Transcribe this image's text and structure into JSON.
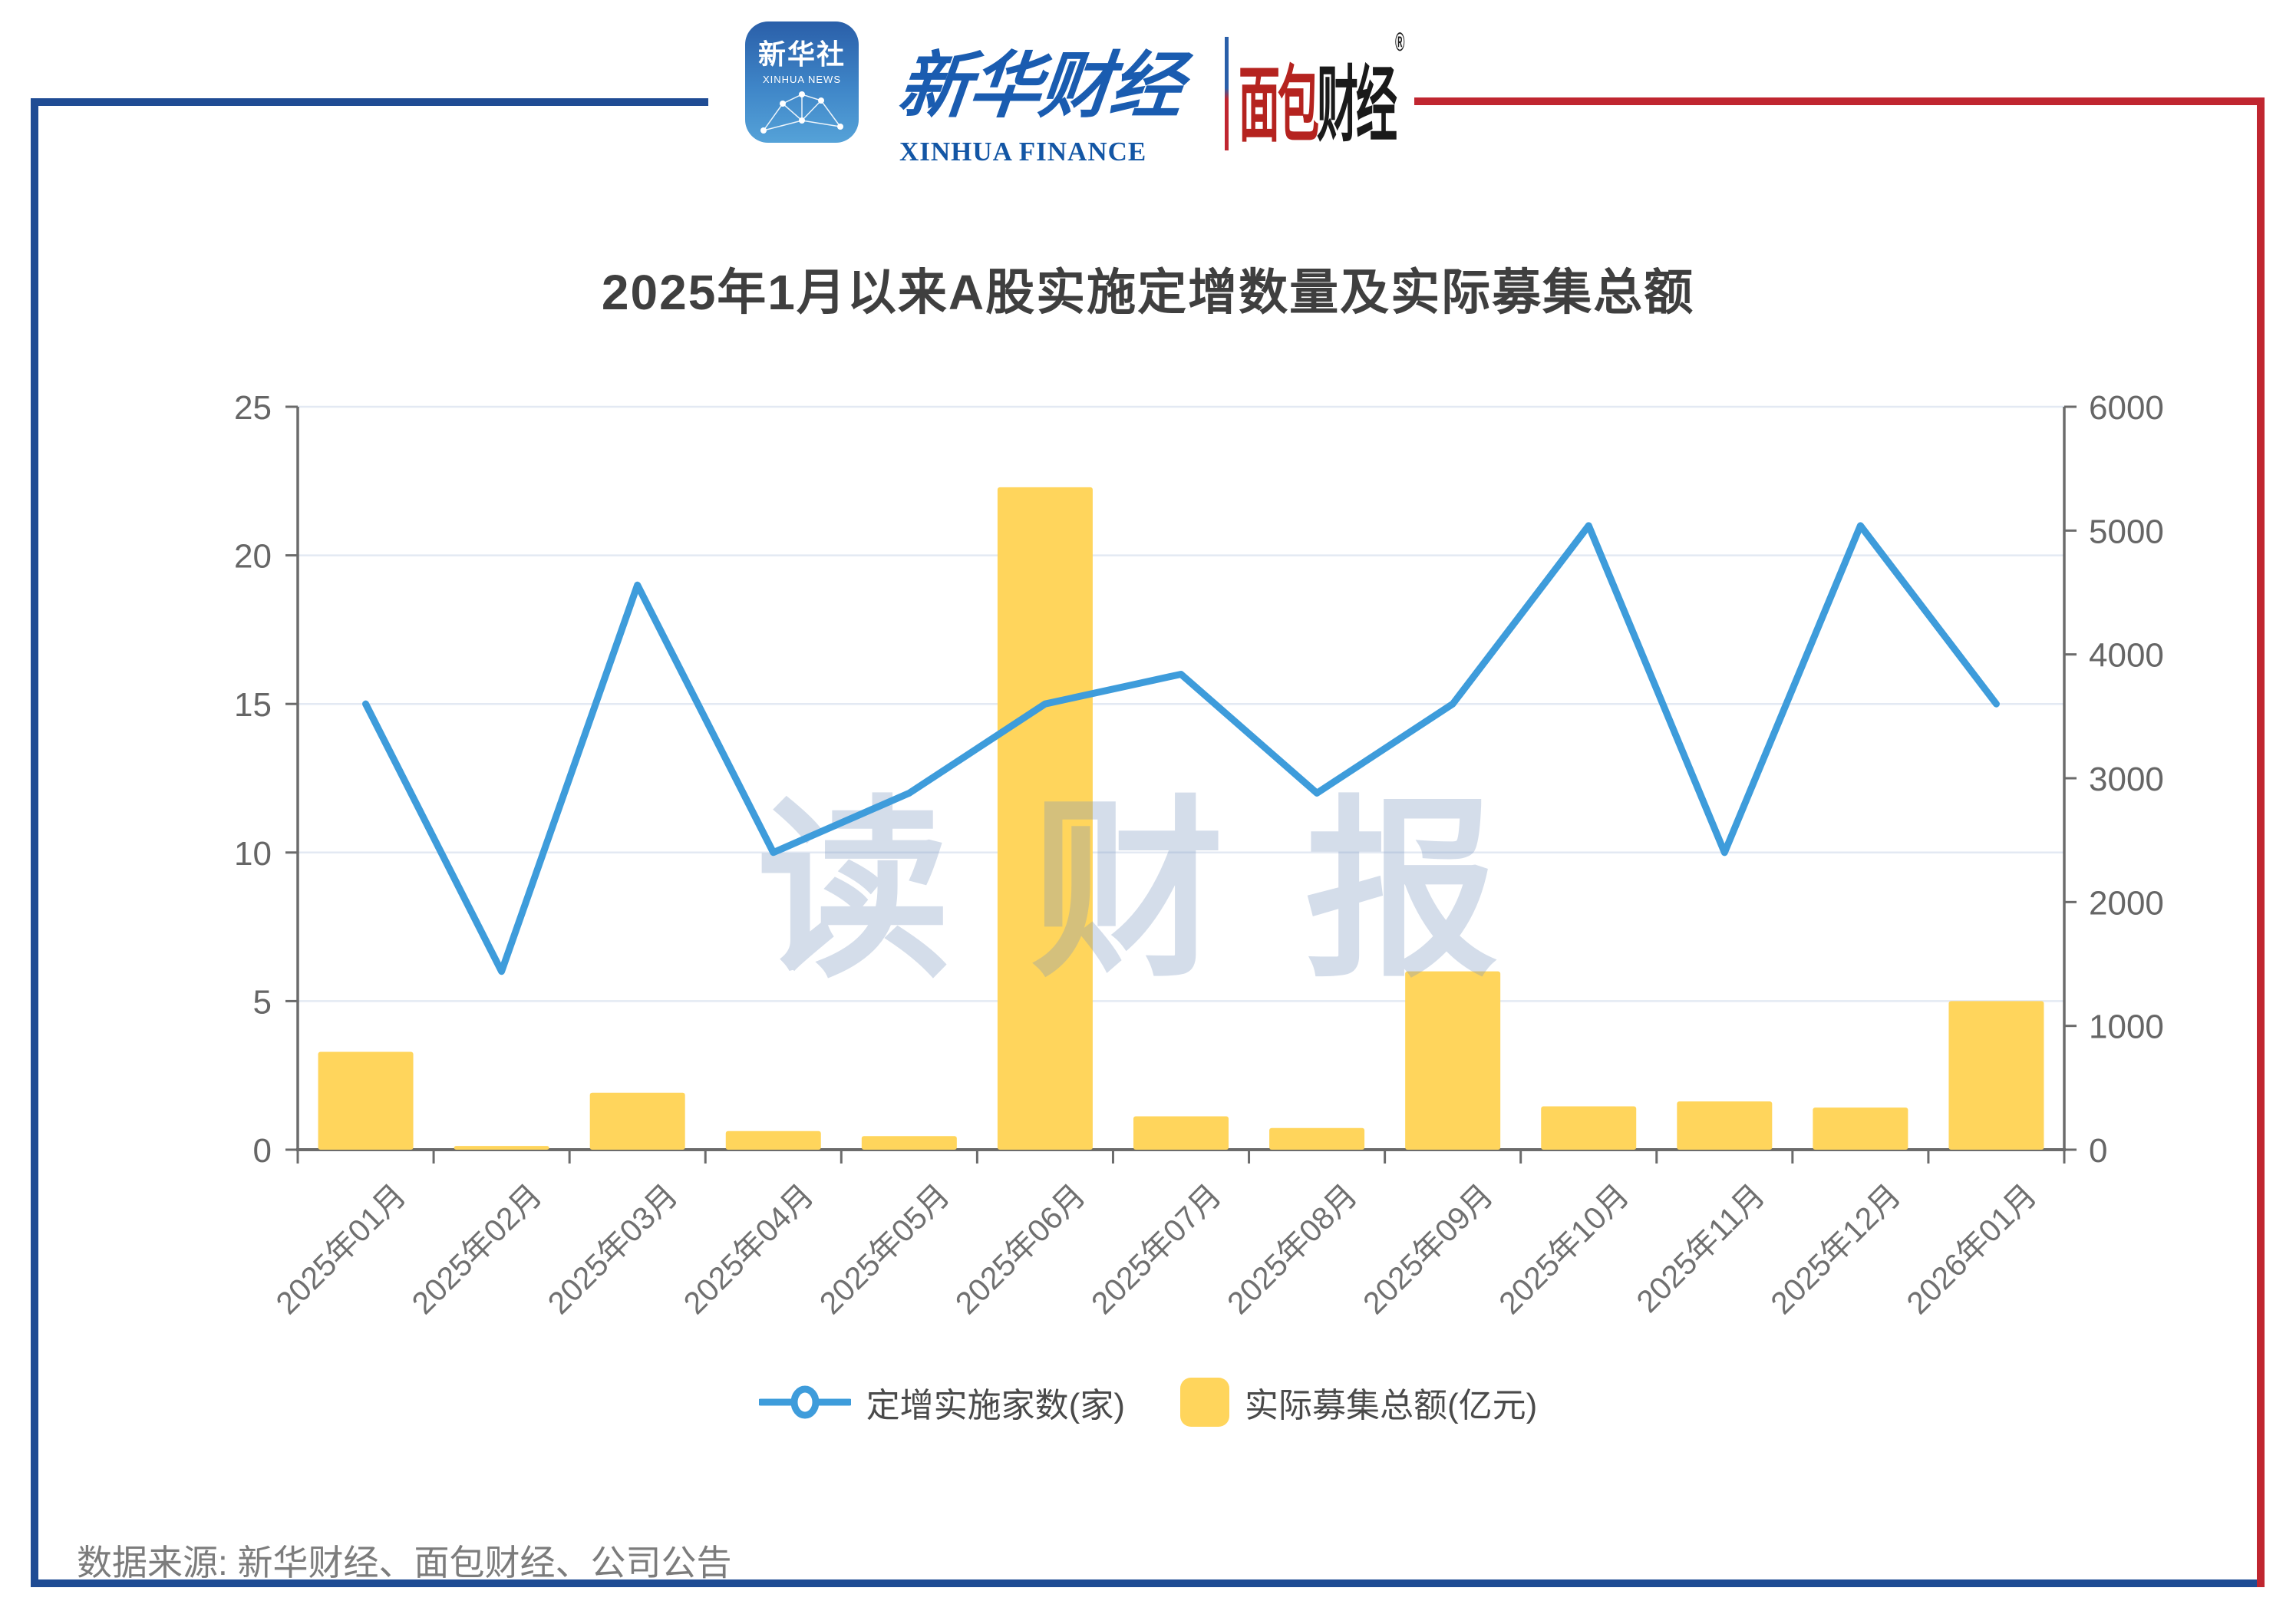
{
  "header": {
    "xinhua_app": {
      "line1": "新华社",
      "line2": "XINHUA NEWS"
    },
    "xinhua_finance": {
      "cn": "新华财经",
      "en": "XINHUA FINANCE"
    },
    "bread_finance": {
      "cn_red": "面包",
      "cn_black": "财经",
      "reg": "®"
    }
  },
  "title": "2025年1月以来A股实施定增数量及实际募集总额",
  "watermark": "读财报",
  "source": "数据来源: 新华财经、面包财经、公司公告",
  "colors": {
    "frame_blue": "#1F4C94",
    "frame_red": "#C02630",
    "line_blue": "#3E9CDB",
    "bar_yellow": "#FFD55C",
    "gridline": "#E3E9F3",
    "axis": "#6B6B6B"
  },
  "chart_data": {
    "type": "line+bar",
    "title": "2025年1月以来A股实施定增数量及实际募集总额",
    "categories": [
      "2025年01月",
      "2025年02月",
      "2025年03月",
      "2025年04月",
      "2025年05月",
      "2025年06月",
      "2025年07月",
      "2025年08月",
      "2025年09月",
      "2025年10月",
      "2025年11月",
      "2025年12月",
      "2026年01月"
    ],
    "series": [
      {
        "name": "定增实施家数(家)",
        "type": "line",
        "axis": "left",
        "color": "#3E9CDB",
        "values": [
          15,
          6,
          19,
          10,
          12,
          15,
          16,
          12,
          15,
          21,
          10,
          21,
          15
        ]
      },
      {
        "name": "实际募集总额(亿元)",
        "type": "bar",
        "axis": "right",
        "color": "#FFD55C",
        "values": [
          790,
          30,
          460,
          150,
          110,
          5350,
          270,
          175,
          1440,
          350,
          390,
          340,
          1200
        ]
      }
    ],
    "left_axis": {
      "min": 0,
      "max": 25,
      "ticks": [
        0,
        5,
        10,
        15,
        20,
        25
      ]
    },
    "right_axis": {
      "min": 0,
      "max": 6000,
      "ticks": [
        0,
        1000,
        2000,
        3000,
        4000,
        5000,
        6000
      ]
    },
    "grid": true,
    "legend_position": "bottom"
  }
}
